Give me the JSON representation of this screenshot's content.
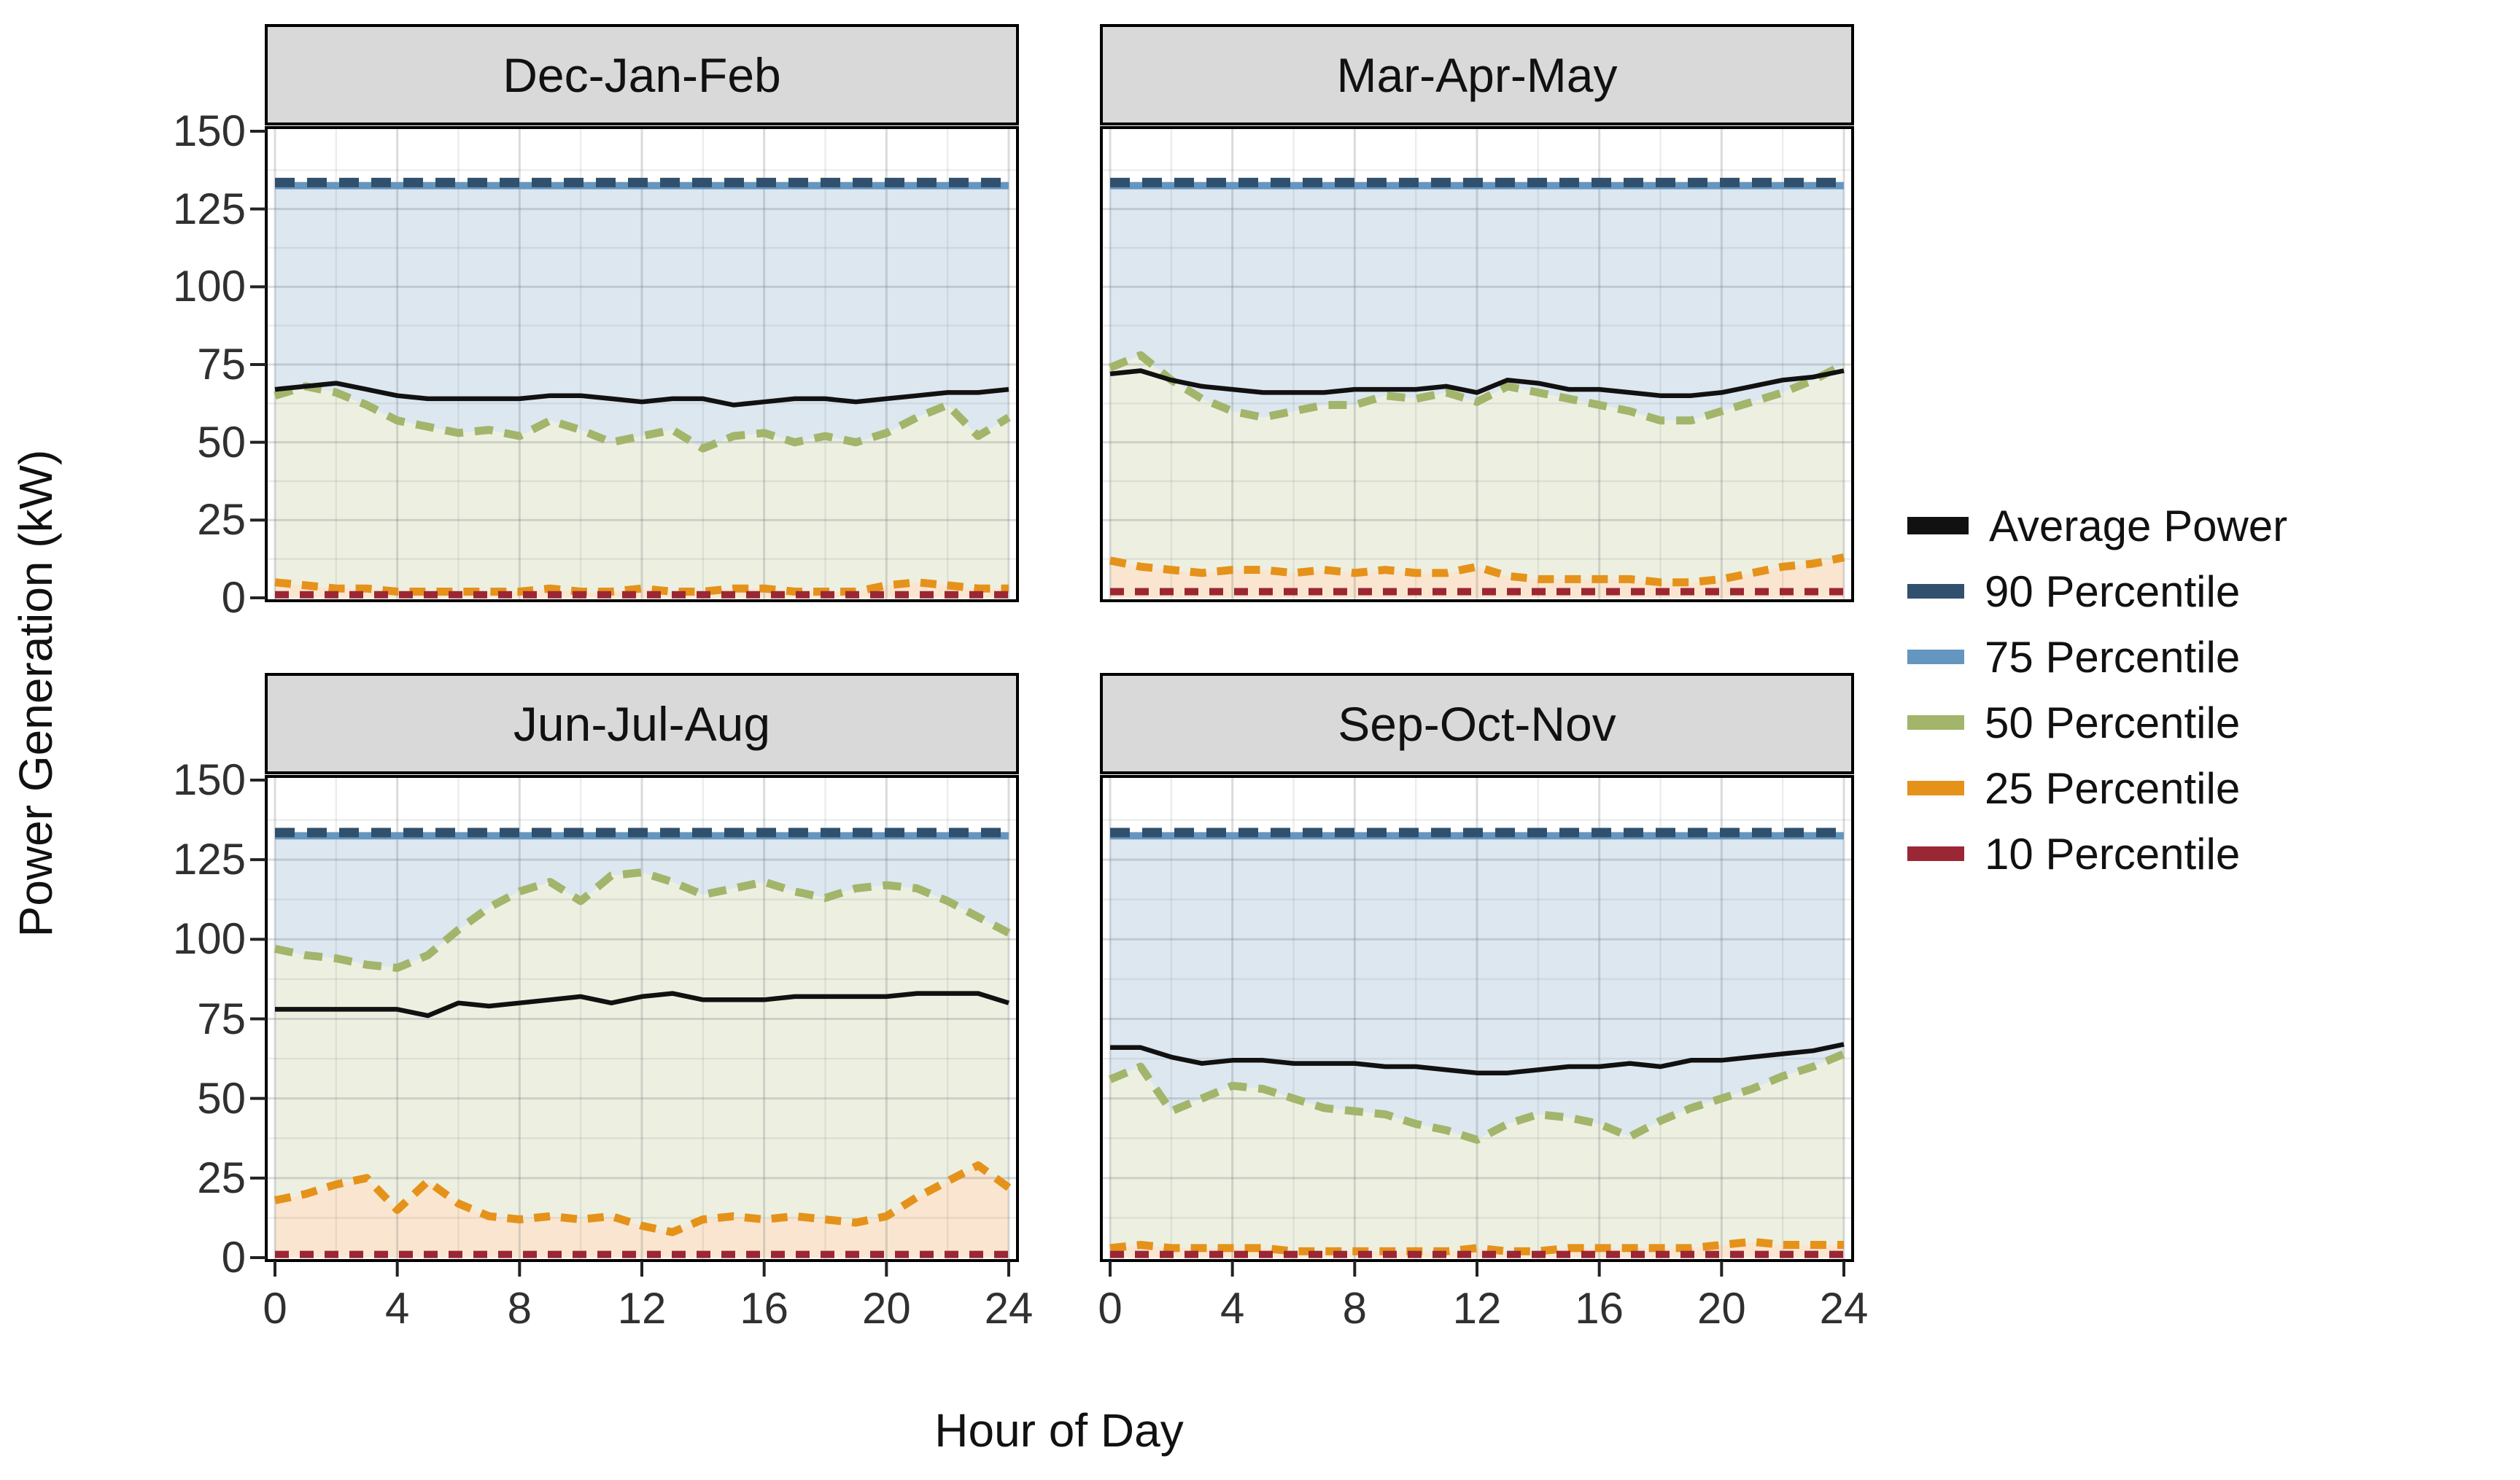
{
  "figure": {
    "colors": {
      "average": "#111111",
      "p90": "#31506e",
      "p75": "#6596bf",
      "p50": "#a2b56b",
      "p25": "#e5921b",
      "p10": "#9b2734",
      "fill_p75": "#dde7f0",
      "fill_p50": "#edf0e1",
      "fill_p25": "#fae6d0",
      "strip_bg": "#d9d9d9",
      "panel_bg": "#ffffff",
      "grid_major": "rgba(120,125,130,0.28)",
      "grid_minor": "rgba(120,125,130,0.14)"
    }
  },
  "chart_data": {
    "type": "line",
    "title": "",
    "xlabel": "Hour of Day",
    "ylabel": "Power Generation (kW)",
    "ylim": [
      0,
      150
    ],
    "yticks": [
      0,
      25,
      50,
      75,
      100,
      125,
      150
    ],
    "xticks": [
      0,
      4,
      8,
      12,
      16,
      20,
      24
    ],
    "grid": true,
    "legend_position": "right",
    "hours": [
      0,
      1,
      2,
      3,
      4,
      5,
      6,
      7,
      8,
      9,
      10,
      11,
      12,
      13,
      14,
      15,
      16,
      17,
      18,
      19,
      20,
      21,
      22,
      23,
      24
    ],
    "legend": [
      {
        "label": "Average Power",
        "key": "average"
      },
      {
        "label": "90 Percentile",
        "key": "p90"
      },
      {
        "label": "75 Percentile",
        "key": "p75"
      },
      {
        "label": "50 Percentile",
        "key": "p50"
      },
      {
        "label": "25 Percentile",
        "key": "p25"
      },
      {
        "label": "10 Percentile",
        "key": "p10"
      }
    ],
    "facets": [
      {
        "title": "Dec-Jan-Feb",
        "p90_constant": 133.5,
        "p75_constant": 132.5,
        "average": [
          67,
          68,
          69,
          67,
          65,
          64,
          64,
          64,
          64,
          65,
          65,
          64,
          63,
          64,
          64,
          62,
          63,
          64,
          64,
          63,
          64,
          65,
          66,
          66,
          67
        ],
        "p50": [
          65,
          68,
          66,
          62,
          57,
          55,
          53,
          54,
          52,
          57,
          54,
          50,
          52,
          54,
          48,
          52,
          53,
          50,
          52,
          50,
          53,
          58,
          62,
          52,
          58
        ],
        "p25": [
          5,
          4,
          3,
          3,
          2,
          2,
          2,
          2,
          2,
          3,
          2,
          2,
          3,
          2,
          2,
          3,
          3,
          2,
          2,
          2,
          4,
          5,
          4,
          3,
          3
        ],
        "p10": [
          1,
          1,
          1,
          1,
          1,
          1,
          1,
          1,
          1,
          1,
          1,
          1,
          1,
          1,
          1,
          1,
          1,
          1,
          1,
          1,
          1,
          1,
          1,
          1,
          1
        ]
      },
      {
        "title": "Mar-Apr-May",
        "p90_constant": 133.5,
        "p75_constant": 132.5,
        "average": [
          72,
          73,
          70,
          68,
          67,
          66,
          66,
          66,
          67,
          67,
          67,
          68,
          66,
          70,
          69,
          67,
          67,
          66,
          65,
          65,
          66,
          68,
          70,
          71,
          73
        ],
        "p50": [
          74,
          78,
          70,
          64,
          60,
          58,
          60,
          62,
          62,
          65,
          64,
          66,
          63,
          68,
          66,
          64,
          62,
          60,
          57,
          57,
          60,
          63,
          66,
          70,
          75
        ],
        "p25": [
          12,
          10,
          9,
          8,
          9,
          9,
          8,
          9,
          8,
          9,
          8,
          8,
          10,
          7,
          6,
          6,
          6,
          6,
          5,
          5,
          6,
          8,
          10,
          11,
          13
        ],
        "p10": [
          2,
          2,
          2,
          2,
          2,
          2,
          2,
          2,
          2,
          2,
          2,
          2,
          2,
          2,
          2,
          2,
          2,
          2,
          2,
          2,
          2,
          2,
          2,
          2,
          2
        ]
      },
      {
        "title": "Jun-Jul-Aug",
        "p90_constant": 133.5,
        "p75_constant": 132.5,
        "average": [
          78,
          78,
          78,
          78,
          78,
          76,
          80,
          79,
          80,
          81,
          82,
          80,
          82,
          83,
          81,
          81,
          81,
          82,
          82,
          82,
          82,
          83,
          83,
          83,
          80
        ],
        "p50": [
          97,
          95,
          94,
          92,
          91,
          95,
          103,
          110,
          115,
          118,
          112,
          120,
          121,
          118,
          114,
          116,
          118,
          115,
          113,
          116,
          117,
          116,
          112,
          107,
          102
        ],
        "p25": [
          18,
          20,
          23,
          25,
          15,
          24,
          17,
          13,
          12,
          13,
          12,
          13,
          10,
          8,
          12,
          13,
          12,
          13,
          12,
          11,
          13,
          19,
          24,
          29,
          22
        ],
        "p10": [
          1,
          1,
          1,
          1,
          1,
          1,
          1,
          1,
          1,
          1,
          1,
          1,
          1,
          1,
          1,
          1,
          1,
          1,
          1,
          1,
          1,
          1,
          1,
          1,
          1
        ]
      },
      {
        "title": "Sep-Oct-Nov",
        "p90_constant": 133.5,
        "p75_constant": 132.5,
        "average": [
          66,
          66,
          63,
          61,
          62,
          62,
          61,
          61,
          61,
          60,
          60,
          59,
          58,
          58,
          59,
          60,
          60,
          61,
          60,
          62,
          62,
          63,
          64,
          65,
          67
        ],
        "p50": [
          56,
          60,
          46,
          50,
          54,
          53,
          50,
          47,
          46,
          45,
          42,
          40,
          37,
          42,
          45,
          44,
          42,
          38,
          43,
          47,
          50,
          53,
          57,
          60,
          64
        ],
        "p25": [
          3,
          4,
          3,
          3,
          3,
          3,
          2,
          2,
          2,
          2,
          2,
          2,
          3,
          2,
          2,
          3,
          3,
          3,
          3,
          3,
          4,
          5,
          4,
          4,
          4
        ],
        "p10": [
          1,
          1,
          1,
          1,
          1,
          1,
          1,
          1,
          1,
          1,
          1,
          1,
          1,
          1,
          1,
          1,
          1,
          1,
          1,
          1,
          1,
          1,
          1,
          1,
          1
        ]
      }
    ]
  }
}
